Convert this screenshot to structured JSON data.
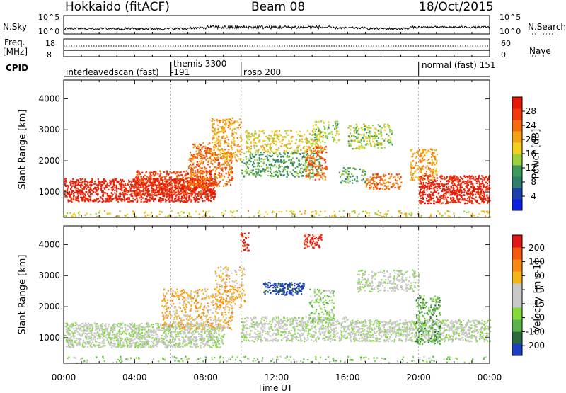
{
  "header": {
    "station": "Hokkaido (fitACF)",
    "beam": "Beam 08",
    "date": "18/Oct/2015"
  },
  "top_panels": {
    "nsky_label": "N.Sky",
    "nsky_ticks": [
      "10^5",
      "10^0"
    ],
    "nsearch_label": "N.Search",
    "nsearch_ticks": [
      "10^5",
      "10^0"
    ],
    "freq_label": "Freq.",
    "freq_unit": "[MHz]",
    "freq_ticks": [
      "18",
      "8"
    ],
    "nave_label": "Nave",
    "nave_ticks": [
      "60",
      "0"
    ],
    "cpid_label": "CPID",
    "cpid_segments": [
      {
        "name": "interleavedscan (fast)",
        "start_h": 0,
        "end_h": 6.0
      },
      {
        "name": "-191",
        "start_h": 6.0,
        "end_h": 6.05
      },
      {
        "name": "themis 3300",
        "start_h": 6.05,
        "end_h": 10.0
      },
      {
        "name": "rbsp 200",
        "start_h": 10.0,
        "end_h": 20.0
      },
      {
        "name": "normal (fast) 151",
        "start_h": 20.0,
        "end_h": 24.0
      }
    ]
  },
  "colors": {
    "power": [
      "#0a1fe0",
      "#1d3fa8",
      "#2f7d6b",
      "#3d9a5a",
      "#9ccf3c",
      "#f2cf20",
      "#f4a11a",
      "#f36d10",
      "#ee3a0c",
      "#e31a0a"
    ],
    "velocity": [
      "#1f3ec6",
      "#2d6a3e",
      "#5ab24c",
      "#84d93e",
      "#c8c8c8",
      "#c8c8c8",
      "#f4b41c",
      "#f48a14",
      "#f15a10",
      "#e0181a"
    ]
  },
  "chart_data": [
    {
      "type": "heatmap",
      "name": "power",
      "ylabel": "Slant Range [km]",
      "colorbar_label": "Power [dB]",
      "colorbar_ticks": [
        "4",
        "8",
        "12",
        "16",
        "20",
        "24",
        "28"
      ],
      "xlim": [
        0,
        24
      ],
      "ylim": [
        180,
        4600
      ],
      "yticks": [
        "1000",
        "2000",
        "3000",
        "4000"
      ],
      "regions": [
        {
          "t0": 0.0,
          "t1": 8.5,
          "r0": 700,
          "r1": 1450,
          "level": 9,
          "density": 0.85
        },
        {
          "t0": 4.0,
          "t1": 8.5,
          "r0": 900,
          "r1": 1700,
          "level": 8,
          "density": 0.6
        },
        {
          "t0": 7.0,
          "t1": 9.5,
          "r0": 1200,
          "r1": 2300,
          "level": 7,
          "density": 0.55
        },
        {
          "t0": 7.2,
          "t1": 8.3,
          "r0": 2100,
          "r1": 2600,
          "level": 7,
          "density": 0.5
        },
        {
          "t0": 8.3,
          "t1": 10.0,
          "r0": 2000,
          "r1": 3400,
          "level": 6,
          "density": 0.45
        },
        {
          "t0": 10.0,
          "t1": 14.5,
          "r0": 1500,
          "r1": 2300,
          "level": 3,
          "density": 0.45
        },
        {
          "t0": 10.2,
          "t1": 14.5,
          "r0": 2300,
          "r1": 3000,
          "level": 5,
          "density": 0.4
        },
        {
          "t0": 13.6,
          "t1": 14.8,
          "r0": 1400,
          "r1": 2500,
          "level": 7,
          "density": 0.45
        },
        {
          "t0": 14.0,
          "t1": 15.5,
          "r0": 2600,
          "r1": 3300,
          "level": 4,
          "density": 0.35
        },
        {
          "t0": 16.0,
          "t1": 18.5,
          "r0": 2400,
          "r1": 3200,
          "level": 4,
          "density": 0.45
        },
        {
          "t0": 17.0,
          "t1": 19.0,
          "r0": 1100,
          "r1": 1600,
          "level": 7,
          "density": 0.55
        },
        {
          "t0": 15.5,
          "t1": 17.0,
          "r0": 1300,
          "r1": 1800,
          "level": 3,
          "density": 0.4
        },
        {
          "t0": 20.0,
          "t1": 24.0,
          "r0": 650,
          "r1": 1550,
          "level": 9,
          "density": 0.8
        },
        {
          "t0": 19.5,
          "t1": 21.0,
          "r0": 1400,
          "r1": 2400,
          "level": 6,
          "density": 0.55
        },
        {
          "t0": 0.0,
          "t1": 24.0,
          "r0": 200,
          "r1": 420,
          "level": 5,
          "density": 0.2
        }
      ]
    },
    {
      "type": "heatmap",
      "name": "velocity",
      "ylabel": "Slant Range [km]",
      "colorbar_label": "Velocity [m s-1]",
      "colorbar_ticks": [
        "200",
        "100",
        "50",
        "15",
        "-15",
        "-50",
        "-100",
        "-200"
      ],
      "xlabel": "Time UT",
      "xlim": [
        0,
        24
      ],
      "xticks": [
        "00:00",
        "04:00",
        "08:00",
        "12:00",
        "16:00",
        "20:00",
        "00:00"
      ],
      "ylim": [
        180,
        4600
      ],
      "yticks": [
        "1000",
        "2000",
        "3000",
        "4000"
      ],
      "regions": [
        {
          "t0": 0.0,
          "t1": 9.0,
          "r0": 700,
          "r1": 1500,
          "level": 4,
          "density": 0.8
        },
        {
          "t0": 5.5,
          "t1": 9.5,
          "r0": 1300,
          "r1": 2600,
          "level": 6,
          "density": 0.4
        },
        {
          "t0": 8.5,
          "t1": 10.2,
          "r0": 2000,
          "r1": 3300,
          "level": 6,
          "density": 0.35
        },
        {
          "t0": 10.0,
          "t1": 16.0,
          "r0": 900,
          "r1": 1700,
          "level": 4,
          "density": 0.6
        },
        {
          "t0": 11.2,
          "t1": 13.5,
          "r0": 2400,
          "r1": 2800,
          "level": 0,
          "density": 0.8
        },
        {
          "t0": 13.5,
          "t1": 14.5,
          "r0": 3900,
          "r1": 4350,
          "level": 9,
          "density": 0.7
        },
        {
          "t0": 9.9,
          "t1": 10.4,
          "r0": 3800,
          "r1": 4400,
          "level": 9,
          "density": 0.5
        },
        {
          "t0": 13.8,
          "t1": 15.2,
          "r0": 1500,
          "r1": 2600,
          "level": 3,
          "density": 0.35
        },
        {
          "t0": 16.5,
          "t1": 20.0,
          "r0": 2500,
          "r1": 3200,
          "level": 4,
          "density": 0.45
        },
        {
          "t0": 16.0,
          "t1": 24.0,
          "r0": 900,
          "r1": 1600,
          "level": 4,
          "density": 0.75
        },
        {
          "t0": 19.8,
          "t1": 21.2,
          "r0": 800,
          "r1": 2400,
          "level": 2,
          "density": 0.45
        },
        {
          "t0": 0.0,
          "t1": 24.0,
          "r0": 200,
          "r1": 420,
          "level": 3,
          "density": 0.15
        }
      ]
    }
  ]
}
